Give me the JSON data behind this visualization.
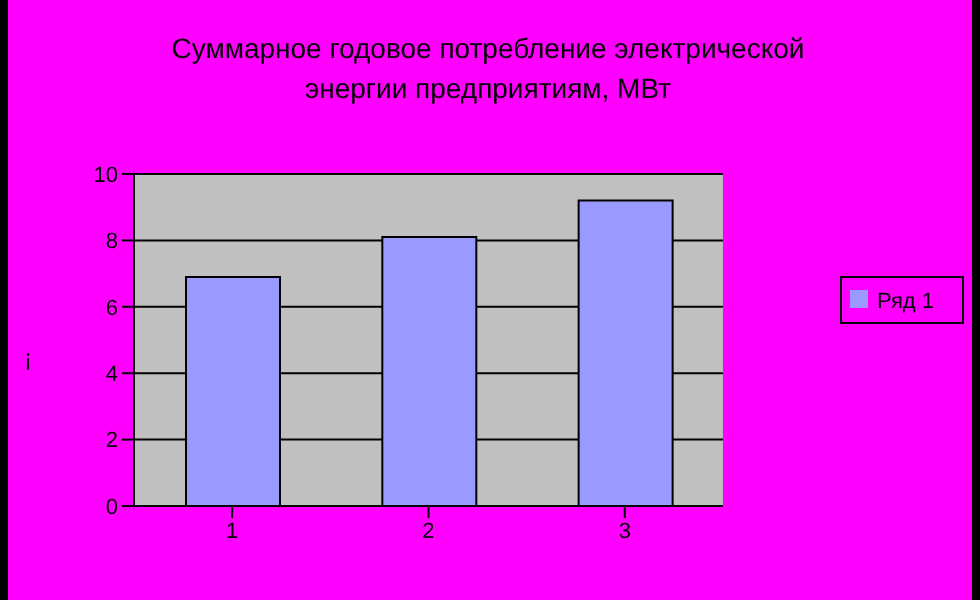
{
  "chart_data": {
    "type": "bar",
    "title": "Суммарное годовое потребление электрической энергии предприятиям, МВт",
    "ylabel": "¡",
    "categories": [
      "1",
      "2",
      "3"
    ],
    "series": [
      {
        "name": "Ряд 1",
        "color": "#9999ff",
        "values": [
          6.9,
          8.1,
          9.2
        ]
      }
    ],
    "ylim": [
      0,
      10
    ],
    "yticks": [
      0,
      2,
      4,
      6,
      8,
      10
    ],
    "grid": "y",
    "legend": "right"
  }
}
